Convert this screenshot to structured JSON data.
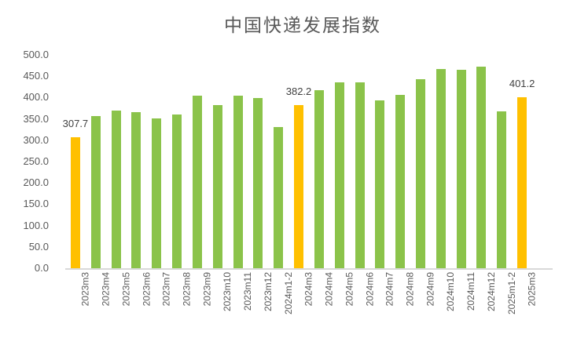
{
  "chart_data": {
    "type": "bar",
    "title": "中国快递发展指数",
    "categories": [
      "2023m3",
      "2023m4",
      "2023m5",
      "2023m6",
      "2023m7",
      "2023m8",
      "2023m9",
      "2023m10",
      "2023m11",
      "2023m12",
      "2024m1-2",
      "2024m3",
      "2024m4",
      "2024m5",
      "2024m6",
      "2024m7",
      "2024m8",
      "2024m9",
      "2024m10",
      "2024m11",
      "2024m12",
      "2025m1-2",
      "2025m3"
    ],
    "values": [
      307.7,
      356,
      370,
      365,
      351,
      361,
      405,
      382,
      405,
      399,
      331,
      382.2,
      417,
      436,
      435,
      393,
      407,
      443,
      466,
      465,
      472,
      368,
      401.2
    ],
    "highlighted_indices": [
      0,
      11,
      22
    ],
    "data_labels": [
      {
        "index": 0,
        "text": "307.7"
      },
      {
        "index": 11,
        "text": "382.2"
      },
      {
        "index": 22,
        "text": "401.2"
      }
    ],
    "xlabel": "",
    "ylabel": "",
    "ylim": [
      0,
      500
    ],
    "ytick_step": 50,
    "ytick_decimals": 1,
    "grid": false,
    "legend": false,
    "colors": {
      "bar": "#8BC34A",
      "highlight": "#FFC000",
      "axis_line": "#D9D9D9",
      "axis_text": "#595959",
      "title_text": "#595959",
      "data_label_text": "#404040",
      "background": "#FFFFFF"
    }
  }
}
